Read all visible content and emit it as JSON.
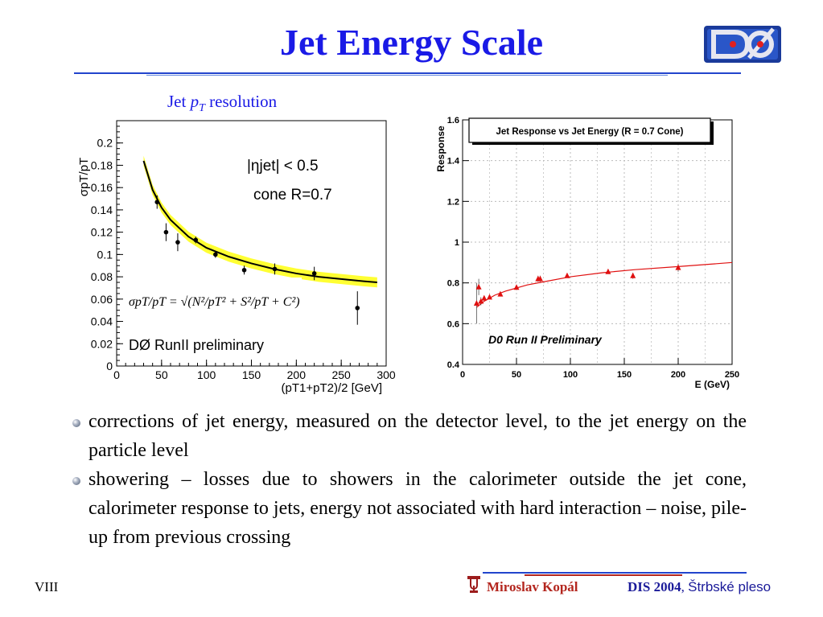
{
  "slide": {
    "title": "Jet Energy Scale",
    "page_label": "VIII",
    "author": "Miroslav Kopál",
    "conference": "DIS 2004",
    "conference_sep": ", ",
    "place": "Štrbské pleso",
    "logo_icon": "d0-experiment-logo",
    "footer_logo_icon": "ou-logo"
  },
  "resolution_heading": {
    "prefix": "Jet ",
    "var": "p",
    "sub": "T",
    "suffix": " resolution"
  },
  "bullets": [
    "corrections of jet energy, measured on the detector level, to the jet energy on the particle level",
    "showering – losses due to showers in the calorimeter outside the jet cone, calorimeter response to jets, energy not associated with hard interaction – noise, pile-up from previous crossing"
  ],
  "colors": {
    "title": "#1a1ae6",
    "rule": "#2244cc",
    "fit_band": "#ffff33",
    "response_marker": "#e01010",
    "author": "#b3261e"
  },
  "chart_data": [
    {
      "type": "scatter",
      "title": "",
      "ylabel": "σpT/pT",
      "xlabel": "(pT1+pT2)/2 [GeV]",
      "xlim": [
        0,
        300
      ],
      "ylim": [
        0,
        0.22
      ],
      "x_ticks": [
        0,
        50,
        100,
        150,
        200,
        250,
        300
      ],
      "y_ticks": [
        0,
        0.02,
        0.04,
        0.06,
        0.08,
        0.1,
        0.12,
        0.14,
        0.16,
        0.18,
        0.2
      ],
      "annotations": [
        "|ηjet| < 0.5",
        "cone R=0.7",
        "DØ RunII preliminary"
      ],
      "formula": "σpT/pT = √(N²/pT² + S²/pT + C²)",
      "series": [
        {
          "points": [
            {
              "x": 45,
              "y": 0.147,
              "err": 0.006
            },
            {
              "x": 55,
              "y": 0.12,
              "err": 0.008
            },
            {
              "x": 68,
              "y": 0.111,
              "err": 0.008
            },
            {
              "x": 88,
              "y": 0.113,
              "err": 0.003
            },
            {
              "x": 110,
              "y": 0.1,
              "err": 0.003
            },
            {
              "x": 142,
              "y": 0.086,
              "err": 0.004
            },
            {
              "x": 176,
              "y": 0.087,
              "err": 0.005
            },
            {
              "x": 220,
              "y": 0.083,
              "err": 0.006
            },
            {
              "x": 268,
              "y": 0.052,
              "err": 0.015
            }
          ]
        }
      ],
      "fit": {
        "x": [
          30,
          40,
          50,
          60,
          80,
          100,
          125,
          150,
          175,
          200,
          225,
          250,
          275,
          290
        ],
        "y": [
          0.184,
          0.158,
          0.142,
          0.131,
          0.116,
          0.106,
          0.098,
          0.092,
          0.087,
          0.083,
          0.08,
          0.078,
          0.076,
          0.075
        ]
      }
    },
    {
      "type": "scatter",
      "title": "Jet Response vs Jet Energy (R = 0.7 Cone)",
      "ylabel": "Response",
      "xlabel": "E (GeV)",
      "xlim": [
        0,
        250
      ],
      "ylim": [
        0.4,
        1.6
      ],
      "x_ticks": [
        0,
        50,
        100,
        150,
        200,
        250
      ],
      "y_ticks": [
        0.4,
        0.6,
        0.8,
        1.0,
        1.2,
        1.4,
        1.6
      ],
      "y_tick_labels": [
        "0.4",
        "0.6",
        "0.8",
        "1",
        "1.2",
        "1.4",
        "1.6"
      ],
      "grid": true,
      "annotation": "D0 Run II Preliminary",
      "series": [
        {
          "points": [
            {
              "x": 13,
              "y": 0.7,
              "err": 0.1
            },
            {
              "x": 15,
              "y": 0.78,
              "err": 0.04
            },
            {
              "x": 17,
              "y": 0.71,
              "err": 0.02
            },
            {
              "x": 20,
              "y": 0.725,
              "err": 0.01
            },
            {
              "x": 25,
              "y": 0.73,
              "err": 0.01
            },
            {
              "x": 35,
              "y": 0.745,
              "err": 0.01
            },
            {
              "x": 50,
              "y": 0.778,
              "err": 0.01
            },
            {
              "x": 70,
              "y": 0.82,
              "err": 0.015
            },
            {
              "x": 72,
              "y": 0.82,
              "err": 0.015
            },
            {
              "x": 97,
              "y": 0.835,
              "err": 0.01
            },
            {
              "x": 135,
              "y": 0.855,
              "err": 0.01
            },
            {
              "x": 158,
              "y": 0.835,
              "err": 0.015
            },
            {
              "x": 200,
              "y": 0.875,
              "err": 0.02
            }
          ]
        }
      ],
      "fit": {
        "x": [
          13,
          20,
          30,
          40,
          60,
          80,
          100,
          130,
          160,
          200,
          250
        ],
        "y": [
          0.68,
          0.71,
          0.74,
          0.76,
          0.79,
          0.81,
          0.83,
          0.85,
          0.865,
          0.88,
          0.9
        ]
      }
    }
  ]
}
